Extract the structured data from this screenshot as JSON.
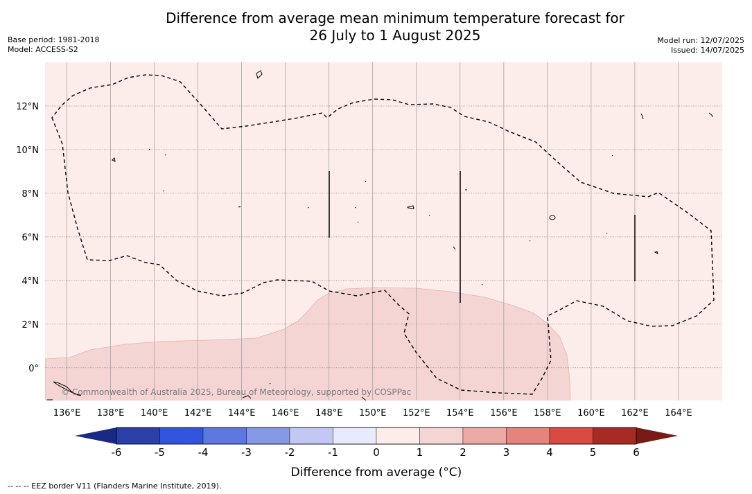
{
  "title": {
    "line1": "Difference from average mean minimum temperature forecast for",
    "line2": "26 July to 1 August 2025"
  },
  "meta_left": {
    "base_period": "Base period: 1981-2018",
    "model": "Model: ACCESS-S2"
  },
  "meta_right": {
    "model_run": "Model run: 12/07/2025",
    "issued": "Issued: 14/07/2025"
  },
  "map": {
    "lon_range": [
      135,
      166
    ],
    "lat_range": [
      -1.5,
      14
    ],
    "lon_ticks": [
      "136°E",
      "138°E",
      "140°E",
      "142°E",
      "144°E",
      "146°E",
      "148°E",
      "150°E",
      "152°E",
      "154°E",
      "156°E",
      "158°E",
      "160°E",
      "162°E",
      "164°E"
    ],
    "lat_ticks": [
      "12°N",
      "10°N",
      "8°N",
      "6°N",
      "4°N",
      "2°N",
      "0°"
    ],
    "background_category": "0 to 1",
    "shaded_region_category": "1 to 2",
    "copyright": "© Commonwealth of Australia 2025, Bureau of Meteorology, supported by COSPPac"
  },
  "colorbar": {
    "label": "Difference from average (°C)",
    "tick_labels": [
      "-6",
      "-5",
      "-4",
      "-3",
      "-2",
      "-1",
      "0",
      "1",
      "2",
      "3",
      "4",
      "5",
      "6"
    ],
    "colors": [
      "#2a3fa8",
      "#3355dd",
      "#5d77e0",
      "#8798e6",
      "#c2c8f3",
      "#e8ebfb",
      "#fcecea",
      "#f5d5d3",
      "#ecaaa5",
      "#e4847c",
      "#d84a42",
      "#a72a25"
    ],
    "under_color": "#1a2a82",
    "over_color": "#7a1a17"
  },
  "footer": "--  --  -- EEZ border V11 (Flanders Marine Institute, 2019)."
}
